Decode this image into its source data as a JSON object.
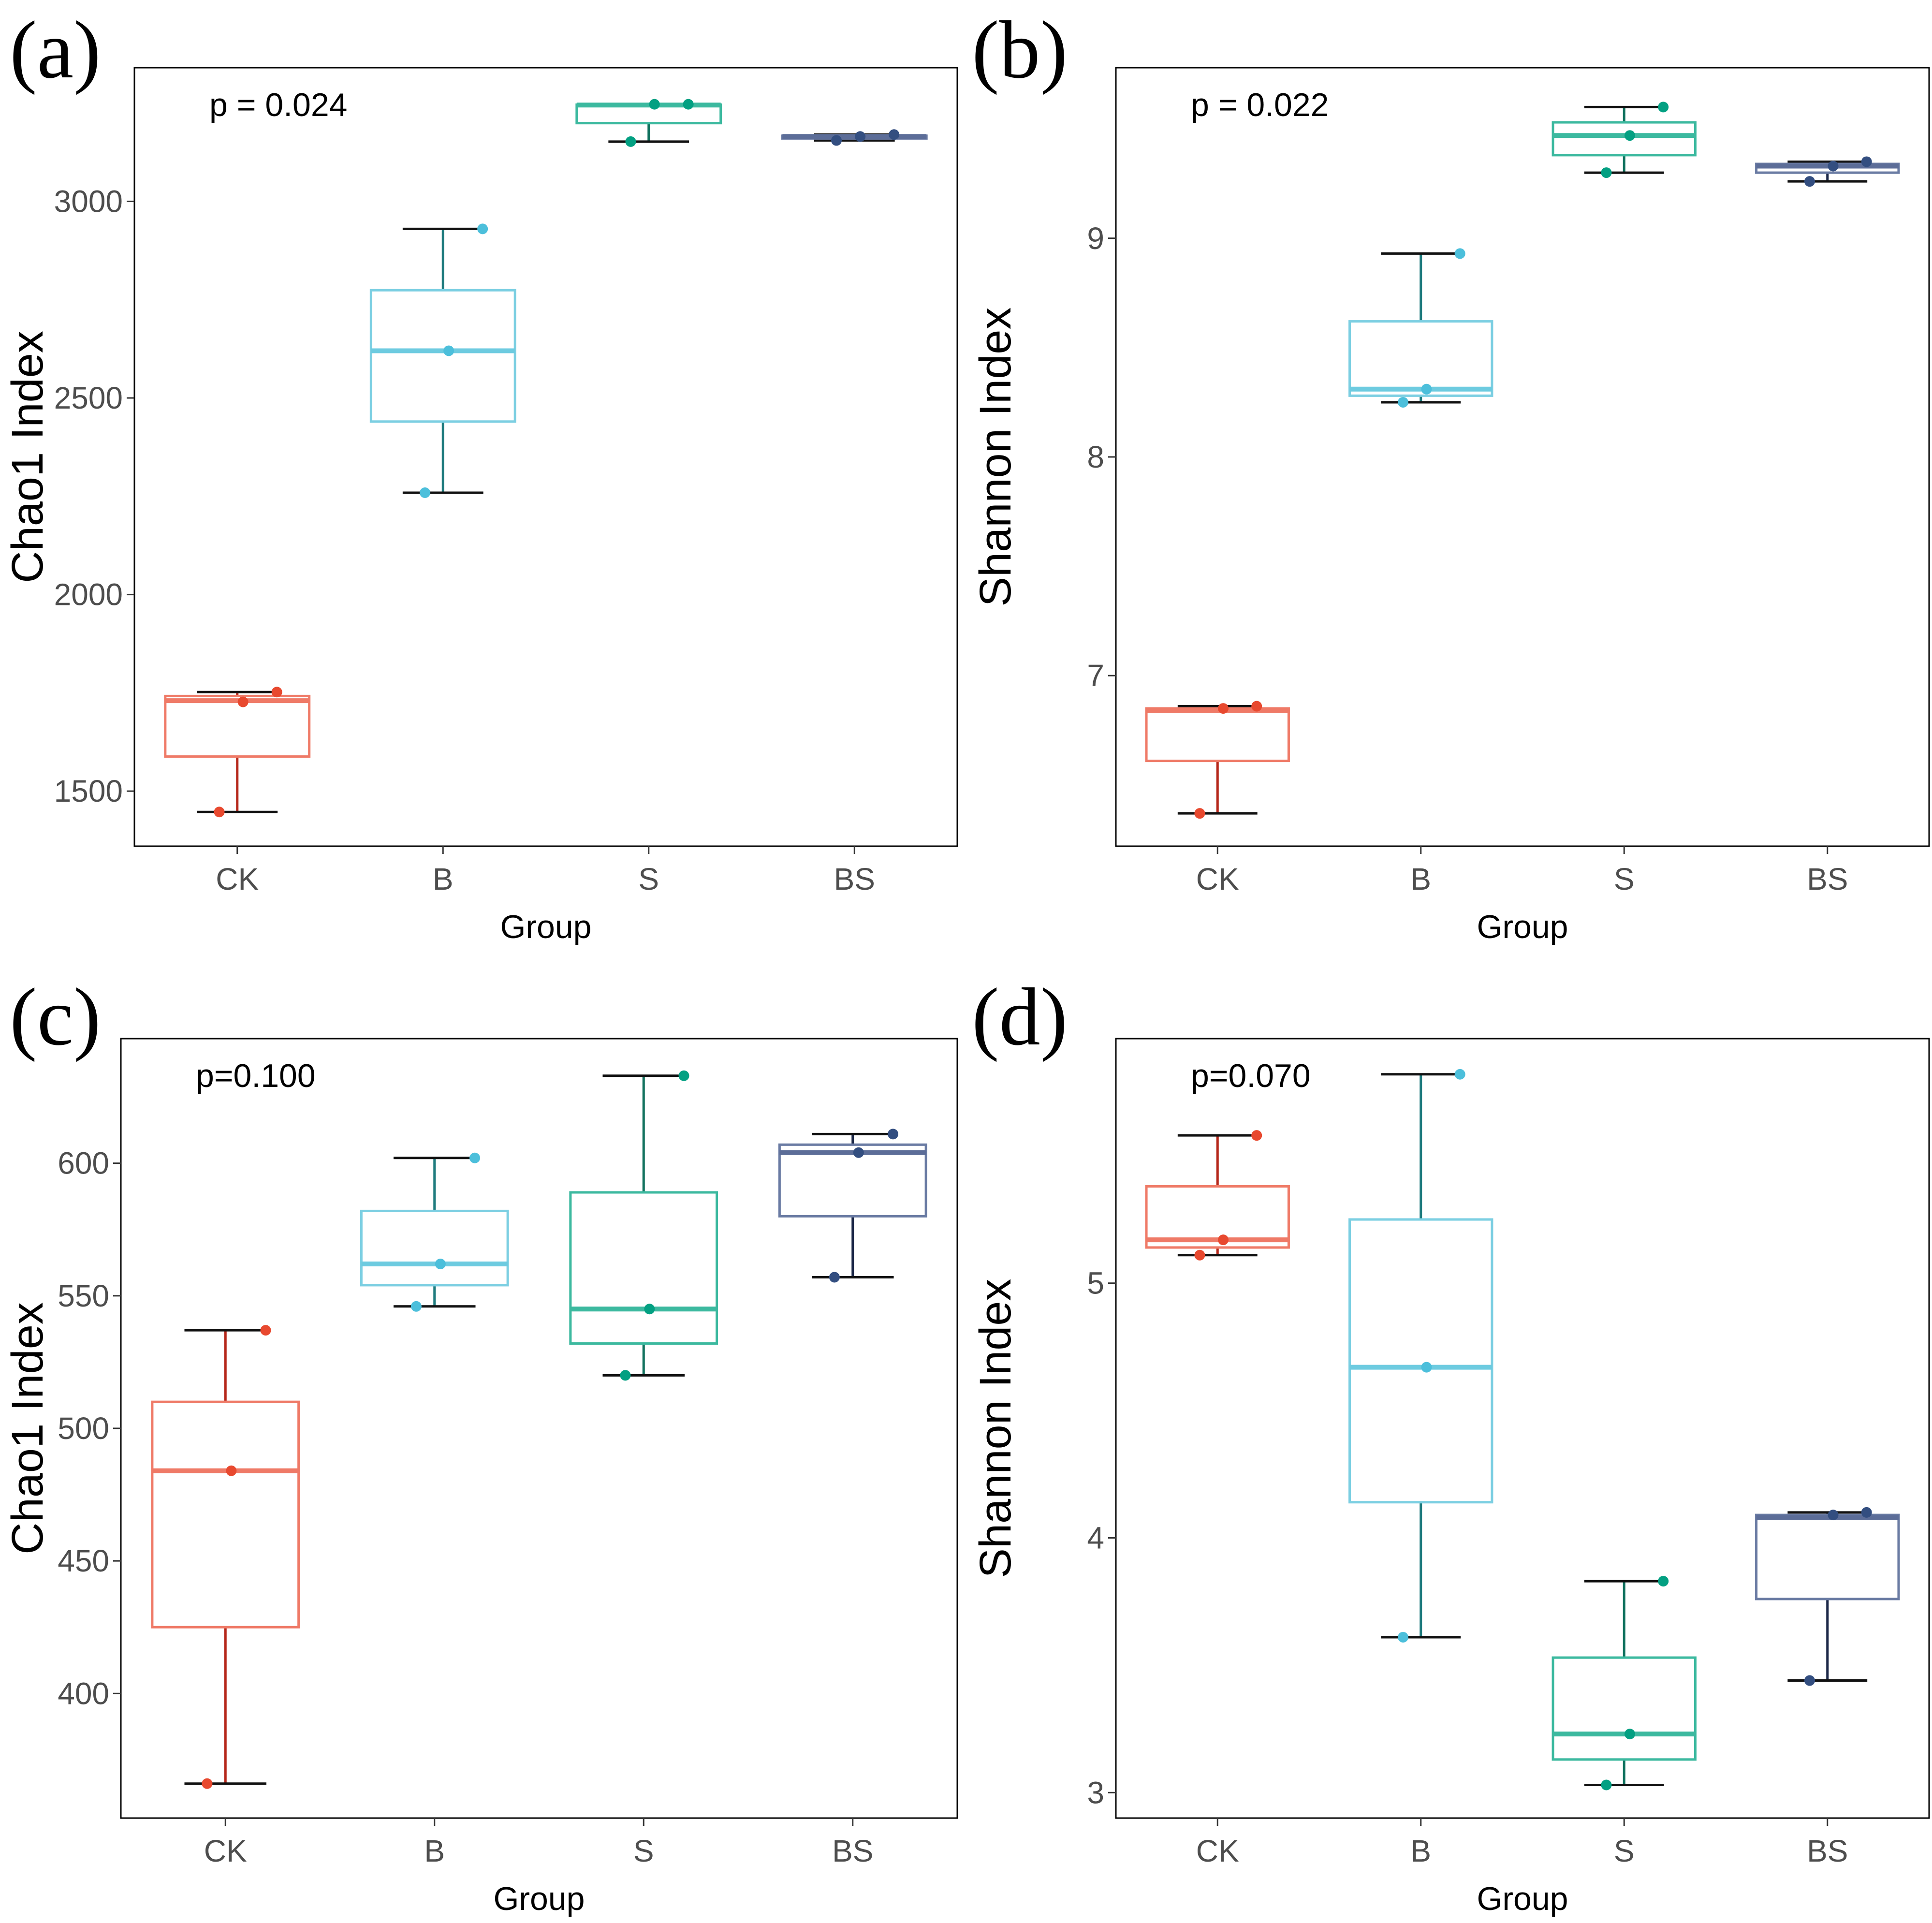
{
  "chart_data": [
    {
      "type": "boxplot",
      "panel_label": "(a)",
      "ylabel": "Chao1  Index",
      "xlabel": "Group",
      "annotation": "p = 0.024",
      "ylim": [
        1360,
        3340
      ],
      "yticks": [
        1500,
        2000,
        2500,
        3000
      ],
      "ytick_labels": [
        "1500",
        "2000",
        "2500",
        "3000"
      ],
      "categories": [
        "CK",
        "B",
        "S",
        "BS"
      ],
      "groups": [
        {
          "name": "CK",
          "min": 1447,
          "q1": 1588,
          "median": 1730,
          "q3": 1742,
          "max": 1752,
          "points": [
            1752,
            1727,
            1447
          ]
        },
        {
          "name": "B",
          "min": 2259,
          "q1": 2440,
          "median": 2620,
          "q3": 2774,
          "max": 2930,
          "points": [
            2930,
            2620,
            2259
          ]
        },
        {
          "name": "S",
          "min": 3152,
          "q1": 3199,
          "median": 3245,
          "q3": 3246,
          "max": 3247,
          "points": [
            3247,
            3247,
            3152
          ]
        },
        {
          "name": "BS",
          "min": 3155,
          "q1": 3160,
          "median": 3165,
          "q3": 3167,
          "max": 3170,
          "points": [
            3170,
            3165,
            3155
          ]
        }
      ]
    },
    {
      "type": "boxplot",
      "panel_label": "(b)",
      "ylabel": "Shannon  Index",
      "xlabel": "Group",
      "annotation": "p = 0.022",
      "ylim": [
        6.22,
        9.78
      ],
      "yticks": [
        7,
        8,
        9
      ],
      "ytick_labels": [
        "7",
        "8",
        "9"
      ],
      "categories": [
        "CK",
        "B",
        "S",
        "BS"
      ],
      "groups": [
        {
          "name": "CK",
          "min": 6.37,
          "q1": 6.61,
          "median": 6.84,
          "q3": 6.85,
          "max": 6.86,
          "points": [
            6.86,
            6.85,
            6.37
          ]
        },
        {
          "name": "B",
          "min": 8.25,
          "q1": 8.28,
          "median": 8.31,
          "q3": 8.62,
          "max": 8.93,
          "points": [
            8.93,
            8.31,
            8.25
          ]
        },
        {
          "name": "S",
          "min": 9.3,
          "q1": 9.38,
          "median": 9.47,
          "q3": 9.53,
          "max": 9.6,
          "points": [
            9.6,
            9.47,
            9.3
          ]
        },
        {
          "name": "BS",
          "min": 9.26,
          "q1": 9.3,
          "median": 9.33,
          "q3": 9.34,
          "max": 9.35,
          "points": [
            9.35,
            9.33,
            9.26
          ]
        }
      ]
    },
    {
      "type": "boxplot",
      "panel_label": "(c)",
      "ylabel": "Chao1  Index",
      "xlabel": "Group",
      "annotation": "p=0.100",
      "ylim": [
        353,
        647
      ],
      "yticks": [
        400,
        450,
        500,
        550,
        600
      ],
      "ytick_labels": [
        "400",
        "450",
        "500",
        "550",
        "600"
      ],
      "categories": [
        "CK",
        "B",
        "S",
        "BS"
      ],
      "groups": [
        {
          "name": "CK",
          "min": 366,
          "q1": 425,
          "median": 484,
          "q3": 510,
          "max": 537,
          "points": [
            537,
            484,
            366
          ]
        },
        {
          "name": "B",
          "min": 546,
          "q1": 554,
          "median": 562,
          "q3": 582,
          "max": 602,
          "points": [
            602,
            562,
            546
          ]
        },
        {
          "name": "S",
          "min": 520,
          "q1": 532,
          "median": 545,
          "q3": 589,
          "max": 633,
          "points": [
            633,
            545,
            520
          ]
        },
        {
          "name": "BS",
          "min": 557,
          "q1": 580,
          "median": 604,
          "q3": 607,
          "max": 611,
          "points": [
            611,
            604,
            557
          ]
        }
      ]
    },
    {
      "type": "boxplot",
      "panel_label": "(d)",
      "ylabel": "Shannon  Index",
      "xlabel": "Group",
      "annotation": "p=0.070",
      "ylim": [
        2.9,
        5.96
      ],
      "yticks": [
        3,
        4,
        5
      ],
      "ytick_labels": [
        "3",
        "4",
        "5"
      ],
      "categories": [
        "CK",
        "B",
        "S",
        "BS"
      ],
      "groups": [
        {
          "name": "CK",
          "min": 5.11,
          "q1": 5.14,
          "median": 5.17,
          "q3": 5.38,
          "max": 5.58,
          "points": [
            5.58,
            5.17,
            5.11
          ]
        },
        {
          "name": "B",
          "min": 3.61,
          "q1": 4.14,
          "median": 4.67,
          "q3": 5.25,
          "max": 5.82,
          "points": [
            5.82,
            4.67,
            3.61
          ]
        },
        {
          "name": "S",
          "min": 3.03,
          "q1": 3.13,
          "median": 3.23,
          "q3": 3.53,
          "max": 3.83,
          "points": [
            3.83,
            3.23,
            3.03
          ]
        },
        {
          "name": "BS",
          "min": 3.44,
          "q1": 3.76,
          "median": 4.08,
          "q3": 4.09,
          "max": 4.1,
          "points": [
            4.1,
            4.09,
            3.44
          ]
        }
      ]
    }
  ],
  "colors": {
    "CK": {
      "box": "#ef7a67",
      "median": "#ef7a67",
      "whisker": "#b5271a",
      "point": "#e8492f"
    },
    "B": {
      "box": "#7ccfe2",
      "median": "#6dcbe0",
      "whisker": "#1f7b7e",
      "point": "#4cbfdb"
    },
    "S": {
      "box": "#3cb99f",
      "median": "#3cb99f",
      "whisker": "#12725f",
      "point": "#03a082"
    },
    "BS": {
      "box": "#6a7ba3",
      "median": "#5c6d98",
      "whisker": "#1c2848",
      "point": "#334e80"
    },
    "cap": "#111111",
    "frame": "#000000",
    "tick_text": "#4d4d4d"
  }
}
